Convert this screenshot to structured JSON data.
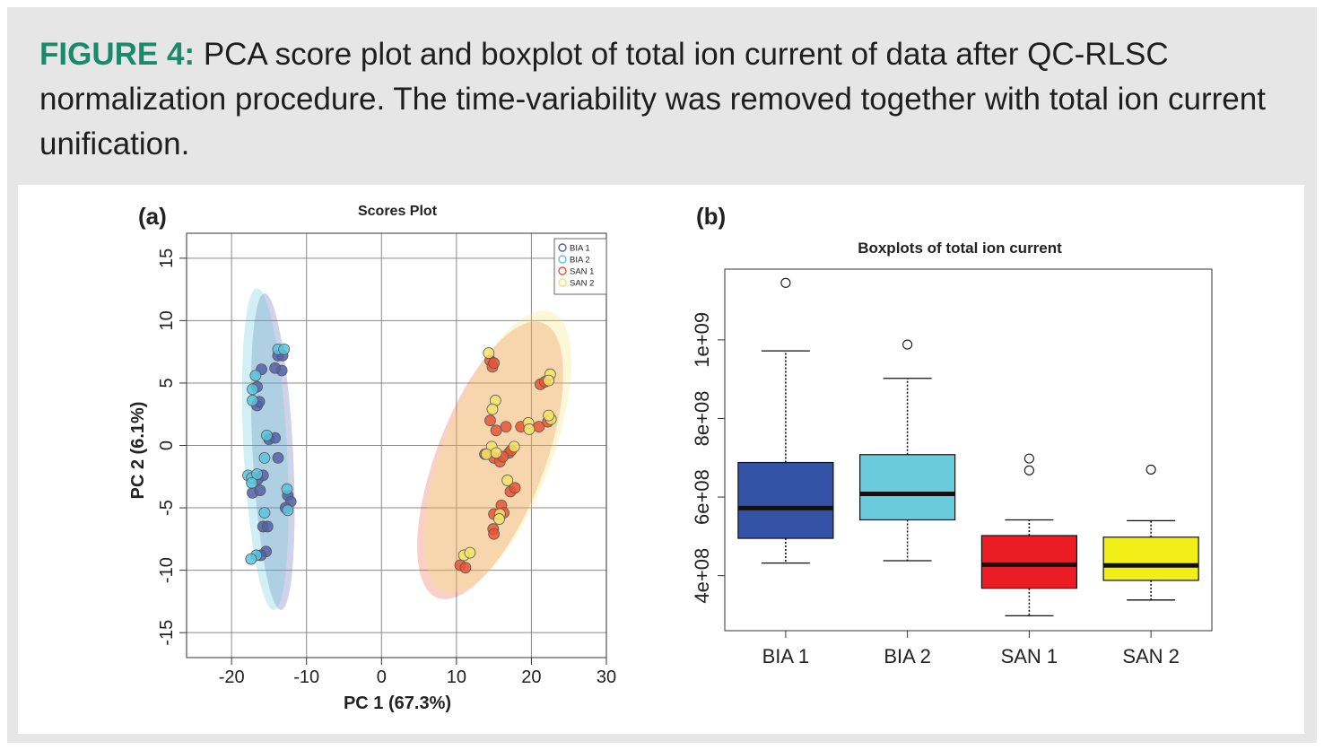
{
  "caption": {
    "label": "FIGURE 4:",
    "text": "PCA score plot and boxplot of total ion current of data after QC-RLSC normalization procedure. The time-variability was removed together with total ion current unification."
  },
  "chart_data": [
    {
      "panel": "(a)",
      "type": "scatter",
      "title": "Scores Plot",
      "xlabel": "PC 1 (67.3%)",
      "ylabel": "PC 2 (6.1%)",
      "xlim": [
        -26,
        30
      ],
      "ylim": [
        -17,
        17
      ],
      "xticks": [
        -20,
        -10,
        0,
        10,
        20,
        30
      ],
      "yticks": [
        -15,
        -10,
        -5,
        0,
        5,
        10,
        15
      ],
      "xtick_labels": [
        "-20",
        "-10",
        "0",
        "10",
        "20",
        "30"
      ],
      "ytick_labels": [
        "-15",
        "-10",
        "-5",
        "0",
        "5",
        "10",
        "15"
      ],
      "grid": true,
      "legend": "top-right",
      "series": [
        {
          "name": "BIA 1",
          "color": "#5560a8",
          "ellipse": {
            "cx": -14.5,
            "cy": -0.5,
            "rx": 2.7,
            "ry": 12.7,
            "angle": -3
          },
          "points": [
            [
              -13.8,
              7.2
            ],
            [
              -13.2,
              7.2
            ],
            [
              -13.3,
              6.0
            ],
            [
              -14.2,
              6.2
            ],
            [
              -16,
              6.1
            ],
            [
              -16.6,
              4.7
            ],
            [
              -16.6,
              3.2
            ],
            [
              -16.3,
              3.5
            ],
            [
              -15,
              0.5
            ],
            [
              -14.2,
              0.6
            ],
            [
              -13.8,
              -1.0
            ],
            [
              -17.2,
              -3.8
            ],
            [
              -16.2,
              -3.6
            ],
            [
              -15.8,
              -2.4
            ],
            [
              -16.5,
              -2.7
            ],
            [
              -12.5,
              -4.0
            ],
            [
              -12.1,
              -4.5
            ],
            [
              -12.8,
              -5.0
            ],
            [
              -15.8,
              -6.5
            ],
            [
              -15.2,
              -6.5
            ],
            [
              -15.4,
              -8.5
            ],
            [
              -16.1,
              -8.8
            ]
          ]
        },
        {
          "name": "BIA 2",
          "color": "#5bc4dc",
          "ellipse": {
            "cx": -15.5,
            "cy": -0.3,
            "rx": 2.9,
            "ry": 12.9,
            "angle": -3
          },
          "points": [
            [
              -13.8,
              7.7
            ],
            [
              -13.0,
              7.7
            ],
            [
              -16.8,
              5.6
            ],
            [
              -17.2,
              4.5
            ],
            [
              -17.2,
              3.6
            ],
            [
              -15.6,
              -1.0
            ],
            [
              -15.3,
              0.8
            ],
            [
              -17.8,
              -2.4
            ],
            [
              -17.3,
              -2.6
            ],
            [
              -16.6,
              -2.3
            ],
            [
              -17.3,
              -3.0
            ],
            [
              -12.6,
              -3.5
            ],
            [
              -12.5,
              -5.2
            ],
            [
              -15.6,
              -5.4
            ],
            [
              -16.7,
              -8.8
            ],
            [
              -17.4,
              -9.1
            ]
          ]
        },
        {
          "name": "SAN 1",
          "color": "#e85535",
          "ellipse": {
            "cx": 14.5,
            "cy": -1.2,
            "rx": 7.2,
            "ry": 11.8,
            "angle": 21
          },
          "points": [
            [
              14.5,
              6.8
            ],
            [
              14.8,
              6.3
            ],
            [
              15.0,
              6.6
            ],
            [
              21.2,
              4.9
            ],
            [
              21.8,
              5.1
            ],
            [
              14.5,
              2.0
            ],
            [
              15.3,
              1.2
            ],
            [
              16.6,
              1.5
            ],
            [
              17.0,
              -0.6
            ],
            [
              17.3,
              -0.4
            ],
            [
              13.8,
              -0.7
            ],
            [
              15.0,
              -1.0
            ],
            [
              15.8,
              -1.3
            ],
            [
              16.2,
              -0.9
            ],
            [
              17.2,
              -3.7
            ],
            [
              17.8,
              -3.4
            ],
            [
              15.0,
              -5.5
            ],
            [
              16.0,
              -4.8
            ],
            [
              16.3,
              -5.4
            ],
            [
              14.9,
              -6.7
            ],
            [
              15.0,
              -7.1
            ],
            [
              10.5,
              -9.6
            ],
            [
              11.2,
              -9.8
            ],
            [
              18.6,
              1.5
            ],
            [
              21.0,
              1.5
            ],
            [
              22.2,
              1.9
            ]
          ]
        },
        {
          "name": "SAN 2",
          "color": "#f4e36a",
          "ellipse": {
            "cx": 15.5,
            "cy": -0.5,
            "rx": 7.2,
            "ry": 12.0,
            "angle": 21
          },
          "points": [
            [
              14.3,
              7.4
            ],
            [
              22.5,
              5.7
            ],
            [
              22.3,
              5.2
            ],
            [
              15.2,
              3.6
            ],
            [
              14.8,
              2.9
            ],
            [
              19.6,
              1.8
            ],
            [
              19.7,
              1.3
            ],
            [
              22.6,
              2.1
            ],
            [
              22.3,
              2.4
            ],
            [
              14.7,
              -0.1
            ],
            [
              17.7,
              -0.1
            ],
            [
              14.0,
              -0.7
            ],
            [
              15.3,
              -0.6
            ],
            [
              16.8,
              -2.8
            ],
            [
              15.8,
              -5.5
            ],
            [
              15.7,
              -5.9
            ],
            [
              11.0,
              -8.8
            ],
            [
              11.8,
              -8.6
            ]
          ]
        }
      ]
    },
    {
      "panel": "(b)",
      "type": "box",
      "title": "Boxplots of total ion current",
      "categories": [
        "BIA 1",
        "BIA 2",
        "SAN 1",
        "SAN 2"
      ],
      "ylim": [
        260000000.0,
        1180000000.0
      ],
      "yticks": [
        400000000.0,
        600000000.0,
        800000000.0,
        1000000000.0
      ],
      "ytick_labels": [
        "4e+08",
        "6e+08",
        "8e+08",
        "1e+09"
      ],
      "series": [
        {
          "name": "BIA 1",
          "color": "#3553a6",
          "min": 432000000.0,
          "q1": 495000000.0,
          "median": 572000000.0,
          "q3": 688000000.0,
          "max": 972000000.0,
          "outliers": [
            1145000000.0
          ]
        },
        {
          "name": "BIA 2",
          "color": "#6acbdd",
          "min": 438000000.0,
          "q1": 542000000.0,
          "median": 608000000.0,
          "q3": 708000000.0,
          "max": 902000000.0,
          "outliers": [
            988000000.0
          ]
        },
        {
          "name": "SAN 1",
          "color": "#ec1c24",
          "min": 298000000.0,
          "q1": 368000000.0,
          "median": 428000000.0,
          "q3": 502000000.0,
          "max": 542000000.0,
          "outliers": [
            698000000.0,
            668000000.0
          ]
        },
        {
          "name": "SAN 2",
          "color": "#f2ee17",
          "min": 338000000.0,
          "q1": 388000000.0,
          "median": 426000000.0,
          "q3": 498000000.0,
          "max": 540000000.0,
          "outliers": [
            670000000.0
          ]
        }
      ]
    }
  ]
}
